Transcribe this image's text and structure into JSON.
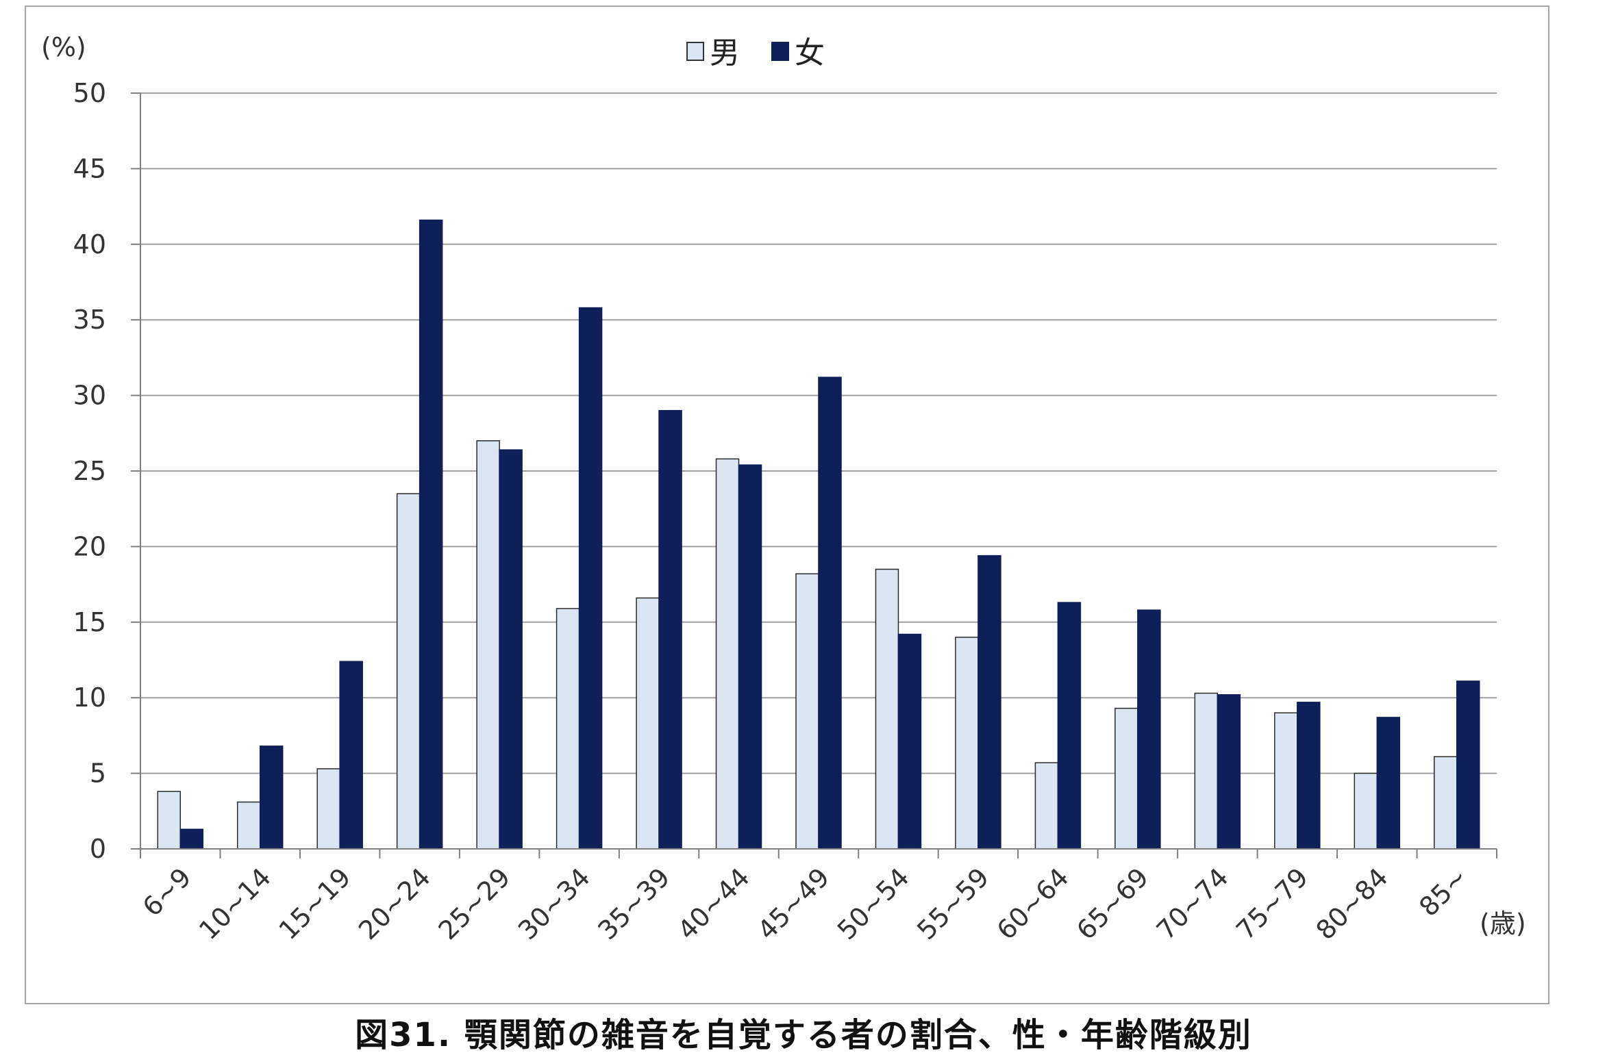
{
  "chart_data": {
    "type": "bar",
    "title": "",
    "caption": "図31. 顎関節の雑音を自覚する者の割合、性・年齢階級別",
    "ylabel": "(%)",
    "xlabel": "(歳)",
    "ylim": [
      0,
      50
    ],
    "yticks": [
      0,
      5,
      10,
      15,
      20,
      25,
      30,
      35,
      40,
      45,
      50
    ],
    "grid": true,
    "legend_position": "top-center",
    "categories": [
      "6~9",
      "10~14",
      "15~19",
      "20~24",
      "25~29",
      "30~34",
      "35~39",
      "40~44",
      "45~49",
      "50~54",
      "55~59",
      "60~64",
      "65~69",
      "70~74",
      "75~79",
      "80~84",
      "85~"
    ],
    "series": [
      {
        "name": "男",
        "color": "#dce6f2",
        "values": [
          3.8,
          3.1,
          5.3,
          23.5,
          27.0,
          15.9,
          16.6,
          25.8,
          18.2,
          18.5,
          14.0,
          5.7,
          9.3,
          10.3,
          9.0,
          5.0,
          6.1
        ]
      },
      {
        "name": "女",
        "color": "#0f1f5a",
        "values": [
          1.3,
          6.8,
          12.4,
          41.6,
          26.4,
          35.8,
          29.0,
          25.4,
          31.2,
          14.2,
          19.4,
          16.3,
          15.8,
          10.2,
          9.7,
          8.7,
          11.1
        ]
      }
    ]
  }
}
